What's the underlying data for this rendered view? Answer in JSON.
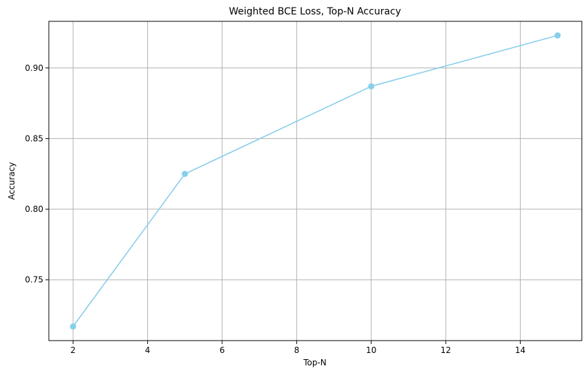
{
  "chart_data": {
    "type": "line",
    "title": "Weighted BCE Loss, Top-N Accuracy",
    "xlabel": "Top-N",
    "ylabel": "Accuracy",
    "x": [
      2,
      5,
      10,
      15
    ],
    "series": [
      {
        "values": [
          0.717,
          0.825,
          0.887,
          0.923
        ],
        "color": "#87ceeb",
        "marker": "circle"
      }
    ],
    "xlim": [
      1.35,
      15.65
    ],
    "ylim": [
      0.707,
      0.933
    ],
    "xticks": [
      2,
      4,
      6,
      8,
      10,
      12,
      14
    ],
    "xtick_labels": [
      "2",
      "4",
      "6",
      "8",
      "10",
      "12",
      "14"
    ],
    "yticks": [
      0.75,
      0.8,
      0.85,
      0.9
    ],
    "ytick_labels": [
      "0.75",
      "0.80",
      "0.85",
      "0.90"
    ],
    "grid": true,
    "legend": "none"
  }
}
